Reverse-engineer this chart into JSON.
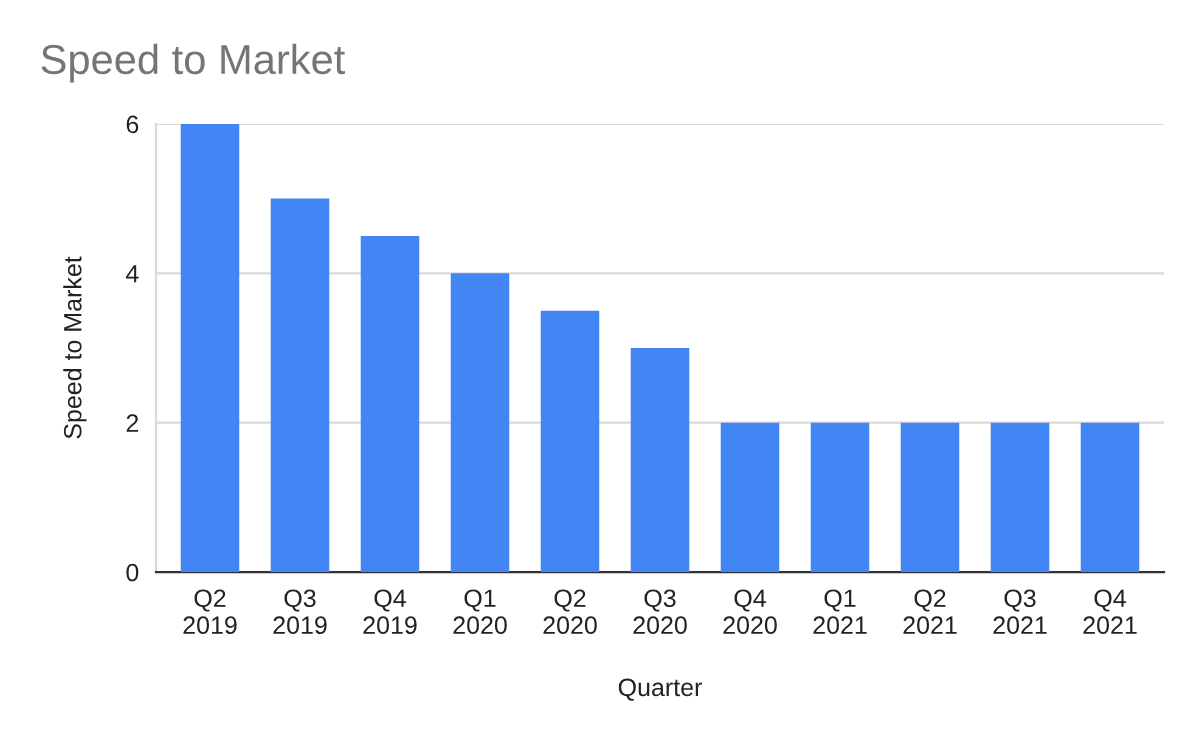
{
  "chart_data": {
    "type": "bar",
    "title": "Speed to Market",
    "xlabel": "Quarter",
    "ylabel": "Speed to Market",
    "categories": [
      "Q2\n2019",
      "Q3\n2019",
      "Q4\n2019",
      "Q1\n2020",
      "Q2\n2020",
      "Q3\n2020",
      "Q4\n2020",
      "Q1\n2021",
      "Q2\n2021",
      "Q3\n2021",
      "Q4\n2021"
    ],
    "values": [
      6,
      5,
      4.5,
      4,
      3.5,
      3,
      2,
      2,
      2,
      2,
      2
    ],
    "color": "#4285f4",
    "ylim": [
      0,
      6
    ],
    "yticks": [
      0,
      2,
      4,
      6
    ],
    "grid": "y",
    "legend": false
  }
}
